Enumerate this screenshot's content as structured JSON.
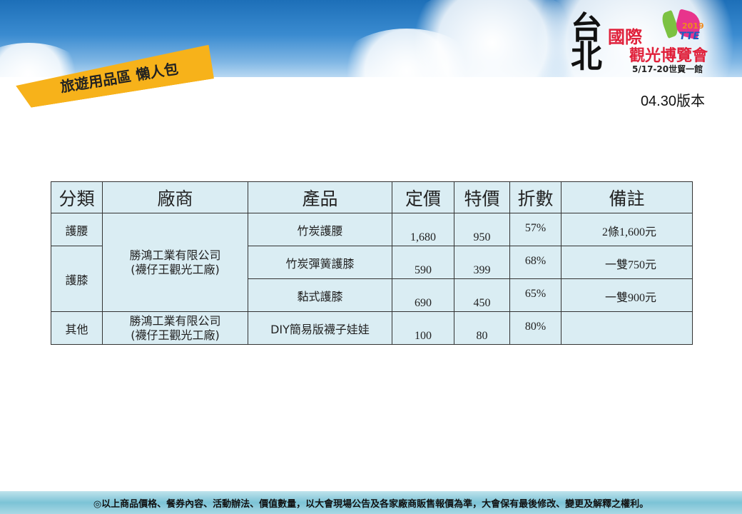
{
  "banner": {
    "title": "旅遊用品區 懶人包"
  },
  "logo": {
    "city": "台北",
    "name_line1": "國際",
    "name_line2": "觀光博覽會",
    "year": "2019",
    "abbr": "TTE",
    "dates": "5/17-20世貿一館"
  },
  "version": "04.30版本",
  "table": {
    "headers": [
      "分類",
      "廠商",
      "產品",
      "定價",
      "特價",
      "折數",
      "備註"
    ],
    "rows": [
      {
        "category": "護腰",
        "vendor": "勝鴻工業有限公司\n(襪仔王觀光工廠)",
        "product": "竹炭護腰",
        "price": "1,680",
        "special": "950",
        "discount": "57%",
        "note": "2條1,600元"
      },
      {
        "category": "護膝",
        "product": "竹炭彈簧護膝",
        "price": "590",
        "special": "399",
        "discount": "68%",
        "note": "一雙750元"
      },
      {
        "product": "黏式護膝",
        "price": "690",
        "special": "450",
        "discount": "65%",
        "note": "一雙900元"
      },
      {
        "category": "其他",
        "vendor": "勝鴻工業有限公司\n(襪仔王觀光工廠)",
        "product": "DIY簡易版襪子娃娃",
        "price": "100",
        "special": "80",
        "discount": "80%",
        "note": ""
      }
    ]
  },
  "footer": "◎以上商品價格、餐券內容、活動辦法、價值數量，以大會現場公告及各家廠商販售報價為準，大會保有最後修改、變更及解釋之權利。"
}
